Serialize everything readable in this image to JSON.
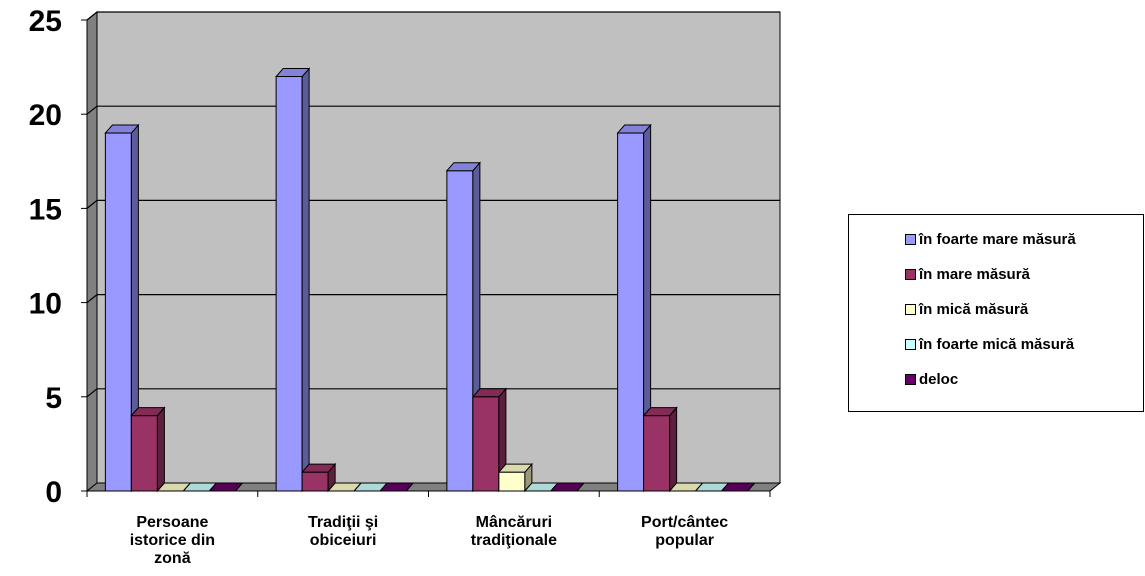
{
  "chart_data": {
    "type": "bar",
    "title": "",
    "xlabel": "",
    "ylabel": "",
    "ylim": [
      0,
      25
    ],
    "yticks": [
      0,
      5,
      10,
      15,
      20,
      25
    ],
    "grid": true,
    "legend_position": "right",
    "categories": [
      [
        "Persoane",
        "istorice din",
        "zonă"
      ],
      [
        "Tradiţii şi",
        "obiceiuri"
      ],
      [
        "Mâncăruri",
        "tradiţionale"
      ],
      [
        "Port/cântec",
        "popular"
      ]
    ],
    "series": [
      {
        "name": "în foarte mare măsură",
        "color": "#9999ff",
        "values": [
          19,
          22,
          17,
          19
        ]
      },
      {
        "name": "în mare măsură",
        "color": "#993366",
        "values": [
          4,
          1,
          5,
          4
        ]
      },
      {
        "name": "în mică măsură",
        "color": "#ffffcc",
        "values": [
          0,
          0,
          1,
          0
        ]
      },
      {
        "name": "în foarte mică măsură",
        "color": "#ccffff",
        "values": [
          0,
          0,
          0,
          0
        ]
      },
      {
        "name": "deloc",
        "color": "#660066",
        "values": [
          0,
          0,
          0,
          0
        ]
      }
    ]
  },
  "colors": {
    "plot_wall": "#c0c0c0",
    "side_wall": "#808080",
    "floor": "#808080",
    "gridline": "#000000"
  }
}
